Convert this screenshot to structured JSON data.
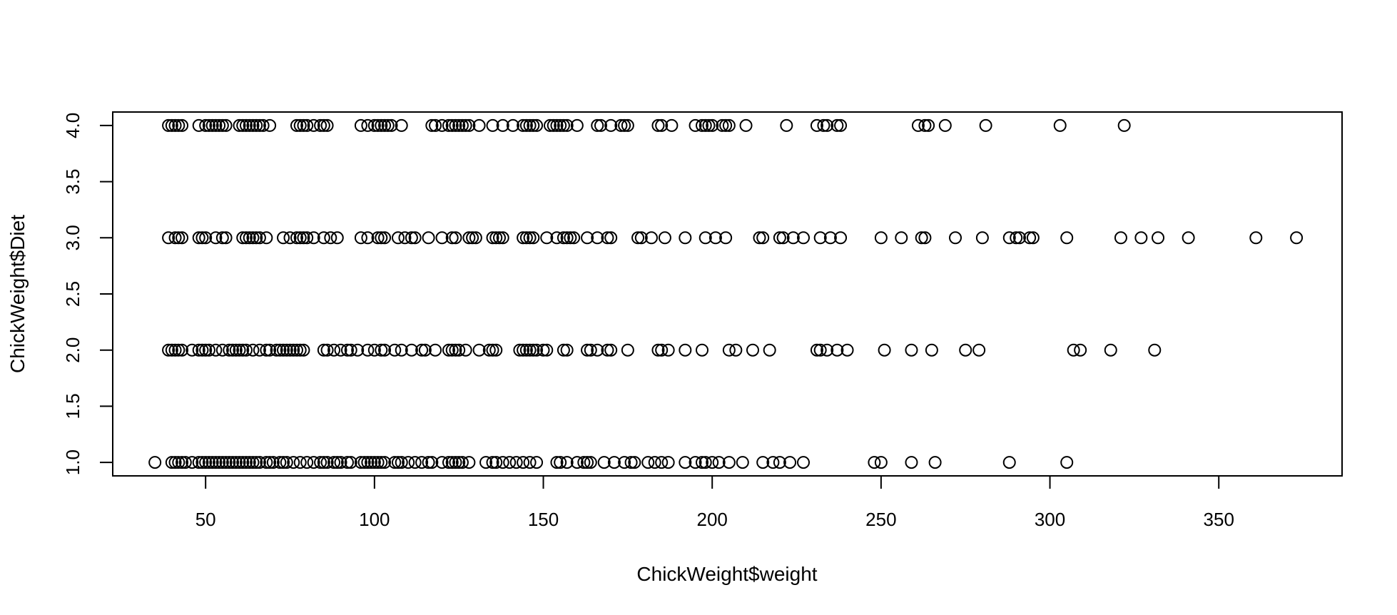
{
  "chart_data": {
    "type": "scatter",
    "title": "",
    "xlabel": "ChickWeight$weight",
    "ylabel": "ChickWeight$Diet",
    "xlim": [
      22.5,
      386.5
    ],
    "ylim": [
      0.88,
      4.12
    ],
    "x_ticks": [
      50,
      100,
      150,
      200,
      250,
      300,
      350
    ],
    "x_tick_labels": [
      "50",
      "100",
      "150",
      "200",
      "250",
      "300",
      "350"
    ],
    "y_ticks": [
      1.0,
      1.5,
      2.0,
      2.5,
      3.0,
      3.5,
      4.0
    ],
    "y_tick_labels": [
      "1.0",
      "1.5",
      "2.0",
      "2.5",
      "3.0",
      "3.5",
      "4.0"
    ],
    "grid": false,
    "legend": "none",
    "marker": "open-circle",
    "series": [
      {
        "y": 1,
        "x": [
          35,
          40,
          41,
          42,
          43,
          44,
          46,
          48,
          49,
          50,
          51,
          52,
          53,
          54,
          55,
          56,
          57,
          58,
          59,
          60,
          61,
          62,
          63,
          64,
          65,
          66,
          68,
          69,
          70,
          72,
          73,
          74,
          76,
          78,
          80,
          82,
          84,
          85,
          86,
          88,
          89,
          90,
          92,
          93,
          96,
          97,
          98,
          99,
          100,
          101,
          102,
          103,
          106,
          107,
          108,
          110,
          112,
          114,
          116,
          117,
          120,
          122,
          123,
          124,
          125,
          126,
          128,
          133,
          135,
          136,
          138,
          140,
          142,
          144,
          146,
          148,
          154,
          155,
          157,
          160,
          162,
          163,
          164,
          168,
          171,
          174,
          176,
          177,
          181,
          183,
          185,
          187,
          192,
          195,
          197,
          198,
          200,
          202,
          205,
          209,
          215,
          218,
          220,
          223,
          227,
          248,
          250,
          259,
          266,
          288,
          305
        ]
      },
      {
        "y": 2,
        "x": [
          39,
          40,
          41,
          42,
          43,
          46,
          48,
          49,
          50,
          51,
          53,
          55,
          57,
          58,
          59,
          60,
          61,
          62,
          64,
          66,
          68,
          69,
          71,
          72,
          73,
          74,
          75,
          76,
          77,
          78,
          79,
          85,
          86,
          88,
          90,
          92,
          93,
          95,
          98,
          100,
          102,
          103,
          106,
          108,
          111,
          114,
          115,
          118,
          122,
          123,
          124,
          125,
          127,
          131,
          134,
          135,
          136,
          143,
          144,
          145,
          146,
          147,
          148,
          150,
          151,
          156,
          157,
          163,
          164,
          166,
          169,
          170,
          175,
          184,
          185,
          187,
          192,
          197,
          205,
          207,
          212,
          217,
          231,
          232,
          234,
          237,
          240,
          251,
          259,
          265,
          275,
          279,
          307,
          309,
          318,
          331
        ]
      },
      {
        "y": 3,
        "x": [
          39,
          41,
          42,
          43,
          48,
          49,
          50,
          53,
          55,
          56,
          61,
          62,
          63,
          64,
          65,
          66,
          68,
          73,
          75,
          77,
          78,
          79,
          80,
          82,
          85,
          87,
          89,
          96,
          98,
          101,
          102,
          103,
          107,
          109,
          111,
          112,
          116,
          120,
          123,
          124,
          128,
          129,
          130,
          135,
          136,
          137,
          138,
          144,
          145,
          146,
          147,
          151,
          154,
          156,
          157,
          158,
          159,
          163,
          166,
          169,
          170,
          178,
          179,
          182,
          186,
          192,
          198,
          201,
          204,
          214,
          215,
          220,
          221,
          224,
          227,
          232,
          235,
          238,
          250,
          256,
          262,
          263,
          272,
          280,
          288,
          290,
          291,
          294,
          295,
          305,
          321,
          327,
          332,
          341,
          361,
          373
        ]
      },
      {
        "y": 4,
        "x": [
          39,
          40,
          41,
          42,
          43,
          48,
          50,
          51,
          52,
          53,
          54,
          55,
          56,
          60,
          61,
          62,
          63,
          64,
          65,
          66,
          67,
          69,
          77,
          78,
          79,
          80,
          82,
          84,
          85,
          86,
          96,
          98,
          100,
          101,
          102,
          103,
          104,
          105,
          108,
          117,
          118,
          120,
          122,
          123,
          124,
          125,
          126,
          127,
          128,
          131,
          135,
          138,
          141,
          144,
          145,
          146,
          147,
          148,
          152,
          153,
          154,
          155,
          156,
          157,
          160,
          166,
          167,
          170,
          173,
          174,
          175,
          184,
          185,
          188,
          195,
          197,
          198,
          199,
          200,
          203,
          204,
          205,
          210,
          222,
          231,
          233,
          234,
          237,
          238,
          261,
          263,
          264,
          269,
          281,
          303,
          322
        ]
      }
    ]
  }
}
